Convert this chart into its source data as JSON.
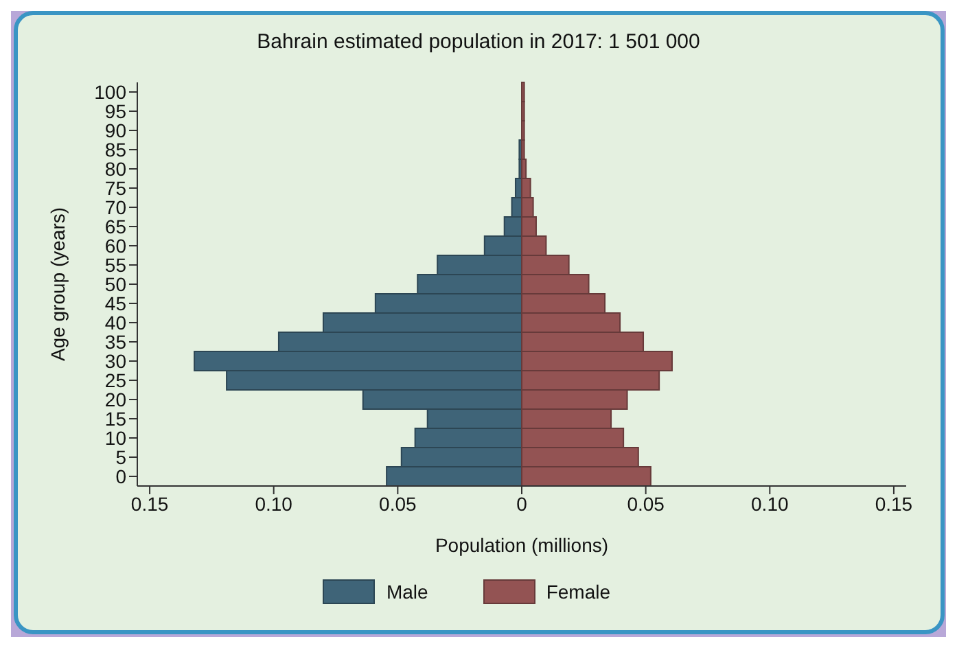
{
  "chart_data": {
    "type": "bar",
    "orientation": "horizontal",
    "stacked": true,
    "title": "Bahrain estimated population in 2017: 1 501 000",
    "xlabel": "Population (millions)",
    "ylabel": "Age group (years)",
    "categories": [
      "100",
      "95",
      "90",
      "85",
      "80",
      "75",
      "70",
      "65",
      "60",
      "55",
      "50",
      "45",
      "40",
      "35",
      "30",
      "25",
      "20",
      "15",
      "10",
      "5",
      "0"
    ],
    "series": [
      {
        "name": "Male",
        "color": "#3f6478",
        "values": [
          0,
          0,
          0,
          -0.001,
          -0.001,
          -0.0025,
          -0.004,
          -0.007,
          -0.015,
          -0.034,
          -0.042,
          -0.059,
          -0.08,
          -0.098,
          -0.132,
          -0.119,
          -0.064,
          -0.038,
          -0.043,
          -0.0485,
          -0.0545
        ]
      },
      {
        "name": "Female",
        "color": "#935353",
        "values": [
          0.001,
          0.001,
          0.001,
          0.001,
          0.0017,
          0.0035,
          0.0046,
          0.0058,
          0.0098,
          0.019,
          0.027,
          0.0335,
          0.0396,
          0.049,
          0.0606,
          0.0554,
          0.0425,
          0.036,
          0.041,
          0.047,
          0.052
        ]
      }
    ],
    "xlim": [
      -0.155,
      0.155
    ],
    "xticks": [
      {
        "value": -0.15,
        "label": "0.15"
      },
      {
        "value": -0.1,
        "label": "0.10"
      },
      {
        "value": -0.05,
        "label": "0.05"
      },
      0,
      {
        "value": 0.05,
        "label": "0.05"
      },
      {
        "value": 0.1,
        "label": "0.10"
      },
      {
        "value": 0.15,
        "label": "0.15"
      }
    ],
    "grid": false,
    "legend": "bottom"
  }
}
